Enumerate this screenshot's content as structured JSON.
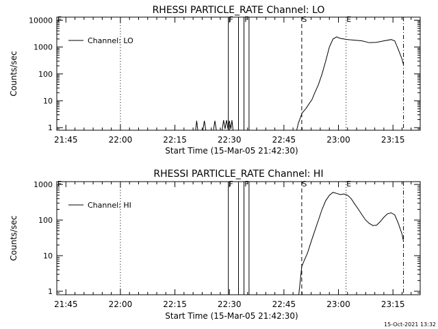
{
  "timestamp": "15-Oct-2021 13:32",
  "colors": {
    "background": "#ffffff",
    "foreground": "#000000"
  },
  "chart_data": [
    {
      "type": "line",
      "title": "RHESSI PARTICLE_RATE Channel: LO",
      "xlabel": "Start Time (15-Mar-05 21:42:30)",
      "ylabel": "Counts/sec",
      "xscale": "time (minutes after 21:42:30)",
      "yscale": "log",
      "xlim": [
        0,
        100
      ],
      "ylim": [
        0.8,
        13000
      ],
      "x_ticks": [
        {
          "v": 2.5,
          "label": "21:45"
        },
        {
          "v": 17.5,
          "label": "22:00"
        },
        {
          "v": 32.5,
          "label": "22:15"
        },
        {
          "v": 47.5,
          "label": "22:30"
        },
        {
          "v": 62.5,
          "label": "22:45"
        },
        {
          "v": 77.5,
          "label": "23:00"
        },
        {
          "v": 92.5,
          "label": "23:15"
        }
      ],
      "y_ticks": [
        {
          "v": 1,
          "label": "1"
        },
        {
          "v": 10,
          "label": "10"
        },
        {
          "v": 100,
          "label": "100"
        },
        {
          "v": 1000,
          "label": "1000"
        },
        {
          "v": 10000,
          "label": "10000"
        }
      ],
      "grid": false,
      "legend": "top-left",
      "series": [
        {
          "name": "Channel: LO",
          "segments": [
            [
              [
                38.2,
                0.8
              ],
              [
                38.5,
                1.8
              ],
              [
                38.8,
                0.8
              ]
            ],
            [
              [
                40.2,
                0.8
              ],
              [
                40.6,
                1.8
              ],
              [
                41.0,
                0.8
              ]
            ],
            [
              [
                43.1,
                0.8
              ],
              [
                43.5,
                1.8
              ],
              [
                43.9,
                0.8
              ]
            ],
            [
              [
                45.5,
                0.8
              ],
              [
                45.9,
                1.9
              ],
              [
                46.3,
                0.9
              ],
              [
                46.7,
                1.9
              ],
              [
                47.1,
                0.9
              ],
              [
                47.5,
                1.8
              ],
              [
                47.9,
                0.9
              ],
              [
                48.2,
                1.9
              ],
              [
                48.5,
                0.8
              ]
            ],
            [
              [
                66.0,
                0.8
              ],
              [
                66.5,
                1.5
              ],
              [
                67,
                2.3
              ],
              [
                67.5,
                3.5
              ],
              [
                68.5,
                5
              ],
              [
                69.5,
                8
              ],
              [
                70.2,
                11
              ],
              [
                71,
                20
              ],
              [
                72,
                40
              ],
              [
                73,
                100
              ],
              [
                74,
                300
              ],
              [
                75,
                1000
              ],
              [
                76,
                2000
              ],
              [
                77,
                2400
              ],
              [
                78,
                2100
              ],
              [
                80,
                1900
              ],
              [
                82,
                1800
              ],
              [
                84,
                1700
              ],
              [
                86,
                1450
              ],
              [
                88,
                1500
              ],
              [
                90,
                1700
              ],
              [
                92,
                1900
              ],
              [
                93,
                1700
              ],
              [
                94,
                800
              ],
              [
                95,
                350
              ],
              [
                95.4,
                220
              ]
            ]
          ]
        }
      ],
      "annotations": [
        {
          "label": "F",
          "x": 0
        },
        {
          "label": "F",
          "x": 47.2
        },
        {
          "label": "F",
          "x": 51.5
        },
        {
          "label": "S",
          "x": 67.4
        },
        {
          "label": "E",
          "x": 79.6
        }
      ],
      "vlines": [
        {
          "style": "dotted",
          "x": 17.5
        },
        {
          "style": "solid",
          "x": 47.2
        },
        {
          "style": "solid",
          "x": 50.0
        },
        {
          "style": "solid",
          "x": 51.5
        },
        {
          "style": "solid",
          "x": 52.9
        },
        {
          "style": "dashed",
          "x": 67.4
        },
        {
          "style": "dotted",
          "x": 79.6
        },
        {
          "style": "dashdot",
          "x": 95.4
        }
      ]
    },
    {
      "type": "line",
      "title": "RHESSI PARTICLE_RATE Channel: HI",
      "xlabel": "Start Time (15-Mar-05 21:42:30)",
      "ylabel": "Counts/sec",
      "xscale": "time (minutes after 21:42:30)",
      "yscale": "log",
      "xlim": [
        0,
        100
      ],
      "ylim": [
        0.8,
        1200
      ],
      "x_ticks": [
        {
          "v": 2.5,
          "label": "21:45"
        },
        {
          "v": 17.5,
          "label": "22:00"
        },
        {
          "v": 32.5,
          "label": "22:15"
        },
        {
          "v": 47.5,
          "label": "22:30"
        },
        {
          "v": 62.5,
          "label": "22:45"
        },
        {
          "v": 77.5,
          "label": "23:00"
        },
        {
          "v": 92.5,
          "label": "23:15"
        }
      ],
      "y_ticks": [
        {
          "v": 1,
          "label": "1"
        },
        {
          "v": 10,
          "label": "10"
        },
        {
          "v": 100,
          "label": "100"
        },
        {
          "v": 1000,
          "label": "1000"
        }
      ],
      "grid": false,
      "legend": "top-left",
      "series": [
        {
          "name": "Channel: HI",
          "segments": [
            [
              [
                66.6,
                0.8
              ],
              [
                67,
                2
              ],
              [
                67.4,
                5
              ],
              [
                68,
                7
              ],
              [
                69,
                12
              ],
              [
                70,
                25
              ],
              [
                71,
                50
              ],
              [
                72,
                100
              ],
              [
                73,
                200
              ],
              [
                74,
                350
              ],
              [
                75,
                500
              ],
              [
                76,
                600
              ],
              [
                77,
                560
              ],
              [
                78,
                520
              ],
              [
                79,
                540
              ],
              [
                80,
                500
              ],
              [
                81,
                400
              ],
              [
                82,
                280
              ],
              [
                83,
                200
              ],
              [
                84,
                140
              ],
              [
                85,
                100
              ],
              [
                86,
                80
              ],
              [
                87,
                70
              ],
              [
                88,
                72
              ],
              [
                89,
                90
              ],
              [
                90,
                120
              ],
              [
                91,
                150
              ],
              [
                92,
                160
              ],
              [
                93,
                140
              ],
              [
                94,
                80
              ],
              [
                95,
                40
              ],
              [
                95.4,
                25
              ]
            ]
          ]
        }
      ],
      "annotations": [
        {
          "label": "F",
          "x": 0
        },
        {
          "label": "F",
          "x": 47.2
        },
        {
          "label": "F",
          "x": 51.5
        },
        {
          "label": "S",
          "x": 67.4
        },
        {
          "label": "E",
          "x": 79.6
        }
      ],
      "vlines": [
        {
          "style": "dotted",
          "x": 17.5
        },
        {
          "style": "solid",
          "x": 47.2
        },
        {
          "style": "solid",
          "x": 50.0
        },
        {
          "style": "solid",
          "x": 51.5
        },
        {
          "style": "solid",
          "x": 52.9
        },
        {
          "style": "dashed",
          "x": 67.4
        },
        {
          "style": "dotted",
          "x": 79.6
        },
        {
          "style": "dashdot",
          "x": 95.4
        }
      ]
    }
  ]
}
